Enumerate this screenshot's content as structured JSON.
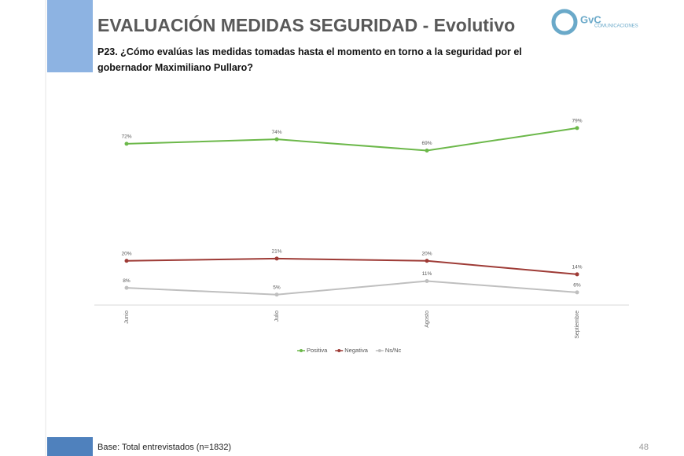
{
  "slide": {
    "logo": "GvC",
    "logo_sub": "COMUNICACIONES",
    "footer": "Base: Total entrevistados (n=1832)",
    "page": "48"
  },
  "chart_data": {
    "type": "line",
    "title": "EVALUACIÓN MEDIDAS SEGURIDAD - Evolutivo",
    "subtitle": "P23. ¿Cómo evalúas las medidas tomadas hasta el momento en torno a la seguridad por el gobernador Maximiliano Pullaro?",
    "categories": [
      "Junio",
      "Julio",
      "Agosto",
      "Septiembre"
    ],
    "ylim": [
      0,
      80
    ],
    "legend": "bottom",
    "series": [
      {
        "name": "Positiva",
        "color": "#6cb84a",
        "values": [
          72,
          74,
          69,
          79
        ],
        "value_labels": [
          "72%",
          "74%",
          "69%",
          "79%"
        ]
      },
      {
        "name": "Negativa",
        "color": "#9e3b36",
        "values": [
          20,
          21,
          20,
          14
        ],
        "value_labels": [
          "20%",
          "21%",
          "20%",
          "14%"
        ]
      },
      {
        "name": "Ns/Nc",
        "color": "#bfbfbf",
        "values": [
          8,
          5,
          11,
          6
        ],
        "value_labels": [
          "8%",
          "5%",
          "11%",
          "6%"
        ]
      }
    ]
  }
}
